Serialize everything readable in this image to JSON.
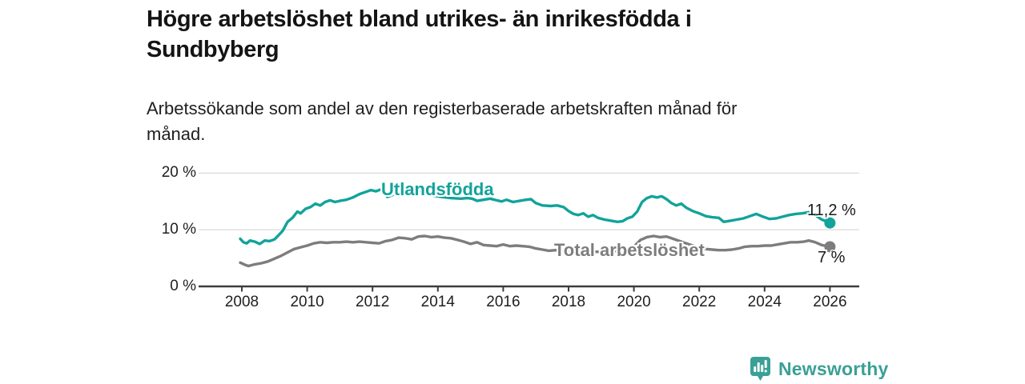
{
  "header": {
    "title_line1": "Högre arbetslöshet bland utrikes- än inrikesfödda i",
    "title_line2": "Sundbyberg",
    "subtitle_line1": "Arbetssökande som andel av den registerbaserade arbetskraften månad för",
    "subtitle_line2": "månad."
  },
  "chart_data": {
    "type": "line",
    "title": "Högre arbetslöshet bland utrikes- än inrikesfödda i Sundbyberg",
    "subtitle": "Arbetssökande som andel av den registerbaserade arbetskraften månad för månad.",
    "xlabel": "",
    "ylabel": "",
    "xlim": [
      2006.7,
      2027
    ],
    "ylim": [
      0,
      21
    ],
    "grid": "horizontal",
    "legend_position": "inline-labels",
    "x_ticks": [
      2008,
      2010,
      2012,
      2014,
      2016,
      2018,
      2020,
      2022,
      2024,
      2026
    ],
    "y_ticks": [
      {
        "value": 0,
        "label": "0 %"
      },
      {
        "value": 10,
        "label": "10 %"
      },
      {
        "value": 20,
        "label": "20 %"
      }
    ],
    "colors": {
      "utlandsfodda": "#12a39a",
      "total": "#7d7d7d",
      "axis": "#3c3c3c",
      "gridline": "#dddddd",
      "end_label_text": "#1a1a1a"
    },
    "series": [
      {
        "name": "Utlandsfödda",
        "color": "#12a39a",
        "end_label": "11,2 %",
        "end_value": 11.2,
        "points": [
          [
            2007.95,
            8.4
          ],
          [
            2008.05,
            7.8
          ],
          [
            2008.15,
            7.6
          ],
          [
            2008.25,
            8.1
          ],
          [
            2008.4,
            7.9
          ],
          [
            2008.55,
            7.5
          ],
          [
            2008.7,
            8.1
          ],
          [
            2008.85,
            8.0
          ],
          [
            2009.0,
            8.3
          ],
          [
            2009.1,
            8.9
          ],
          [
            2009.25,
            9.8
          ],
          [
            2009.4,
            11.4
          ],
          [
            2009.55,
            12.1
          ],
          [
            2009.7,
            13.2
          ],
          [
            2009.8,
            12.9
          ],
          [
            2009.95,
            13.7
          ],
          [
            2010.1,
            14.0
          ],
          [
            2010.25,
            14.6
          ],
          [
            2010.4,
            14.3
          ],
          [
            2010.55,
            14.9
          ],
          [
            2010.7,
            15.2
          ],
          [
            2010.85,
            14.9
          ],
          [
            2011.0,
            15.1
          ],
          [
            2011.2,
            15.3
          ],
          [
            2011.4,
            15.7
          ],
          [
            2011.6,
            16.3
          ],
          [
            2011.8,
            16.7
          ],
          [
            2011.95,
            17.0
          ],
          [
            2012.1,
            16.8
          ],
          [
            2012.3,
            17.2
          ],
          [
            2012.45,
            15.8
          ],
          [
            2012.6,
            16.1
          ],
          [
            2012.8,
            16.6
          ],
          [
            2013.0,
            17.0
          ],
          [
            2013.3,
            17.3
          ],
          [
            2013.5,
            16.8
          ],
          [
            2013.7,
            16.3
          ],
          [
            2013.9,
            16.0
          ],
          [
            2014.1,
            15.8
          ],
          [
            2014.4,
            15.6
          ],
          [
            2014.7,
            15.5
          ],
          [
            2014.9,
            15.6
          ],
          [
            2015.05,
            15.5
          ],
          [
            2015.2,
            15.1
          ],
          [
            2015.4,
            15.3
          ],
          [
            2015.6,
            15.5
          ],
          [
            2015.8,
            15.2
          ],
          [
            2015.95,
            15.0
          ],
          [
            2016.1,
            15.3
          ],
          [
            2016.3,
            14.9
          ],
          [
            2016.5,
            15.1
          ],
          [
            2016.7,
            15.3
          ],
          [
            2016.85,
            15.4
          ],
          [
            2017.0,
            14.7
          ],
          [
            2017.2,
            14.3
          ],
          [
            2017.45,
            14.2
          ],
          [
            2017.65,
            14.3
          ],
          [
            2017.85,
            14.0
          ],
          [
            2018.0,
            13.3
          ],
          [
            2018.15,
            12.8
          ],
          [
            2018.3,
            12.6
          ],
          [
            2018.45,
            12.9
          ],
          [
            2018.6,
            12.3
          ],
          [
            2018.75,
            12.6
          ],
          [
            2018.9,
            12.1
          ],
          [
            2019.1,
            11.8
          ],
          [
            2019.3,
            11.6
          ],
          [
            2019.5,
            11.4
          ],
          [
            2019.65,
            11.5
          ],
          [
            2019.8,
            12.0
          ],
          [
            2019.95,
            12.3
          ],
          [
            2020.1,
            13.2
          ],
          [
            2020.25,
            14.9
          ],
          [
            2020.4,
            15.6
          ],
          [
            2020.55,
            15.9
          ],
          [
            2020.7,
            15.7
          ],
          [
            2020.85,
            15.9
          ],
          [
            2021.0,
            15.4
          ],
          [
            2021.15,
            14.7
          ],
          [
            2021.3,
            14.3
          ],
          [
            2021.45,
            14.6
          ],
          [
            2021.6,
            13.9
          ],
          [
            2021.8,
            13.3
          ],
          [
            2022.0,
            12.9
          ],
          [
            2022.2,
            12.4
          ],
          [
            2022.4,
            12.2
          ],
          [
            2022.6,
            12.1
          ],
          [
            2022.75,
            11.4
          ],
          [
            2022.95,
            11.6
          ],
          [
            2023.15,
            11.8
          ],
          [
            2023.35,
            12.0
          ],
          [
            2023.55,
            12.4
          ],
          [
            2023.75,
            12.8
          ],
          [
            2023.95,
            12.3
          ],
          [
            2024.15,
            11.9
          ],
          [
            2024.35,
            12.0
          ],
          [
            2024.55,
            12.3
          ],
          [
            2024.75,
            12.6
          ],
          [
            2024.95,
            12.8
          ],
          [
            2025.15,
            12.9
          ],
          [
            2025.35,
            13.1
          ],
          [
            2025.55,
            12.6
          ],
          [
            2025.75,
            11.8
          ],
          [
            2025.9,
            11.5
          ],
          [
            2026.0,
            11.2
          ]
        ]
      },
      {
        "name": "Total arbetslöshet",
        "color": "#7d7d7d",
        "end_label": "7 %",
        "end_value": 7.0,
        "points": [
          [
            2007.95,
            4.2
          ],
          [
            2008.1,
            3.8
          ],
          [
            2008.2,
            3.6
          ],
          [
            2008.4,
            3.9
          ],
          [
            2008.6,
            4.1
          ],
          [
            2008.8,
            4.4
          ],
          [
            2009.0,
            4.9
          ],
          [
            2009.2,
            5.4
          ],
          [
            2009.4,
            6.0
          ],
          [
            2009.6,
            6.6
          ],
          [
            2009.8,
            6.9
          ],
          [
            2010.0,
            7.2
          ],
          [
            2010.2,
            7.6
          ],
          [
            2010.4,
            7.8
          ],
          [
            2010.6,
            7.7
          ],
          [
            2010.8,
            7.8
          ],
          [
            2011.0,
            7.8
          ],
          [
            2011.2,
            7.9
          ],
          [
            2011.4,
            7.8
          ],
          [
            2011.6,
            7.9
          ],
          [
            2011.8,
            7.8
          ],
          [
            2012.0,
            7.7
          ],
          [
            2012.2,
            7.6
          ],
          [
            2012.4,
            8.0
          ],
          [
            2012.6,
            8.2
          ],
          [
            2012.8,
            8.6
          ],
          [
            2013.0,
            8.5
          ],
          [
            2013.2,
            8.3
          ],
          [
            2013.4,
            8.8
          ],
          [
            2013.6,
            8.9
          ],
          [
            2013.8,
            8.7
          ],
          [
            2014.0,
            8.8
          ],
          [
            2014.2,
            8.6
          ],
          [
            2014.4,
            8.5
          ],
          [
            2014.6,
            8.2
          ],
          [
            2014.8,
            7.9
          ],
          [
            2015.0,
            7.5
          ],
          [
            2015.2,
            7.8
          ],
          [
            2015.4,
            7.3
          ],
          [
            2015.6,
            7.2
          ],
          [
            2015.8,
            7.1
          ],
          [
            2016.0,
            7.4
          ],
          [
            2016.2,
            7.1
          ],
          [
            2016.4,
            7.2
          ],
          [
            2016.6,
            7.1
          ],
          [
            2016.8,
            7.0
          ],
          [
            2017.0,
            6.7
          ],
          [
            2017.2,
            6.5
          ],
          [
            2017.4,
            6.3
          ],
          [
            2017.6,
            6.4
          ],
          [
            2017.8,
            6.3
          ],
          [
            2018.0,
            6.4
          ],
          [
            2018.3,
            6.3
          ],
          [
            2018.6,
            6.2
          ],
          [
            2018.9,
            6.1
          ],
          [
            2019.2,
            6.2
          ],
          [
            2019.5,
            6.3
          ],
          [
            2019.8,
            6.5
          ],
          [
            2020.0,
            7.0
          ],
          [
            2020.2,
            8.2
          ],
          [
            2020.4,
            8.7
          ],
          [
            2020.6,
            8.9
          ],
          [
            2020.8,
            8.7
          ],
          [
            2021.0,
            8.8
          ],
          [
            2021.2,
            8.4
          ],
          [
            2021.4,
            8.0
          ],
          [
            2021.6,
            7.6
          ],
          [
            2021.8,
            7.2
          ],
          [
            2022.0,
            6.9
          ],
          [
            2022.2,
            6.6
          ],
          [
            2022.4,
            6.5
          ],
          [
            2022.6,
            6.4
          ],
          [
            2022.8,
            6.4
          ],
          [
            2023.0,
            6.5
          ],
          [
            2023.2,
            6.7
          ],
          [
            2023.4,
            7.0
          ],
          [
            2023.6,
            7.1
          ],
          [
            2023.8,
            7.1
          ],
          [
            2024.0,
            7.2
          ],
          [
            2024.2,
            7.2
          ],
          [
            2024.4,
            7.4
          ],
          [
            2024.6,
            7.6
          ],
          [
            2024.8,
            7.8
          ],
          [
            2025.0,
            7.8
          ],
          [
            2025.2,
            7.9
          ],
          [
            2025.35,
            8.1
          ],
          [
            2025.55,
            7.8
          ],
          [
            2025.75,
            7.3
          ],
          [
            2026.0,
            7.0
          ]
        ]
      }
    ]
  },
  "branding": {
    "logo_text": "Newsworthy",
    "logo_color": "#3aa096",
    "logo_icon": "bar-chart-speech-bubble-icon"
  }
}
